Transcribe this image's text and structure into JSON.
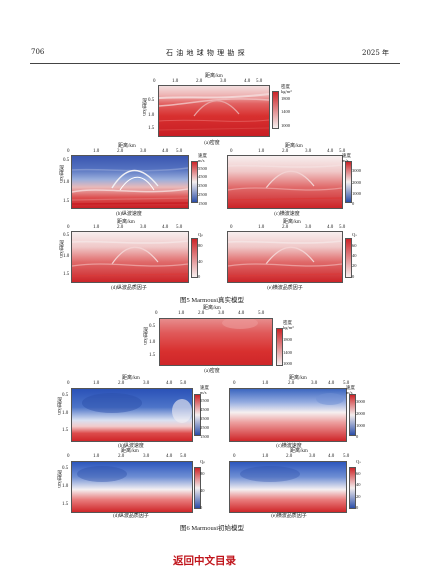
{
  "header": {
    "page_number": "706",
    "journal_title": "石 油 地 球 物 理 勘 探",
    "year": "2025 年"
  },
  "axes": {
    "distance_label": "距离/km",
    "depth_label": "深度/km",
    "distance_ticks": [
      "0",
      "1.0",
      "2.0",
      "3.0",
      "4.0",
      "5.0"
    ],
    "depth_ticks": [
      "0.5",
      "1.0",
      "1.5"
    ]
  },
  "colorbars": {
    "density": {
      "label": "密度\nkg/m³",
      "ticks": [
        "1000",
        "1400",
        "1800"
      ]
    },
    "vp": {
      "label": "速度\nm/s",
      "ticks": [
        "1500",
        "2500",
        "3500",
        "4500",
        "5500"
      ]
    },
    "vs": {
      "label": "速度\nm/s",
      "ticks": [
        "0",
        "1000",
        "2000",
        "3000"
      ]
    },
    "qp": {
      "label": "Qₚ",
      "ticks": [
        "0",
        "40",
        "80"
      ]
    },
    "qs": {
      "label": "Qₛ",
      "ticks": [
        "0",
        "20",
        "40",
        "60"
      ]
    }
  },
  "figure5": {
    "caption": "图5  Marmousi真实模型",
    "panels": {
      "a": "(a)密度",
      "b": "(b)纵波速度",
      "c": "(c)横波速度",
      "d": "(d)纵波品质因子",
      "e": "(e)横波品质因子"
    }
  },
  "figure6": {
    "caption": "图6  Marmousi初始模型",
    "panels": {
      "a": "(a)密度",
      "b": "(b)纵波速度",
      "c": "(c)横波速度",
      "d": "(d)纵波品质因子",
      "e": "(e)横波品质因子"
    }
  },
  "footer": {
    "back_link": "返回中文目录"
  },
  "colors": {
    "red": "#d7272b",
    "white": "#f6f0f0",
    "blue": "#2b4ea8",
    "link": "#c0141b"
  }
}
